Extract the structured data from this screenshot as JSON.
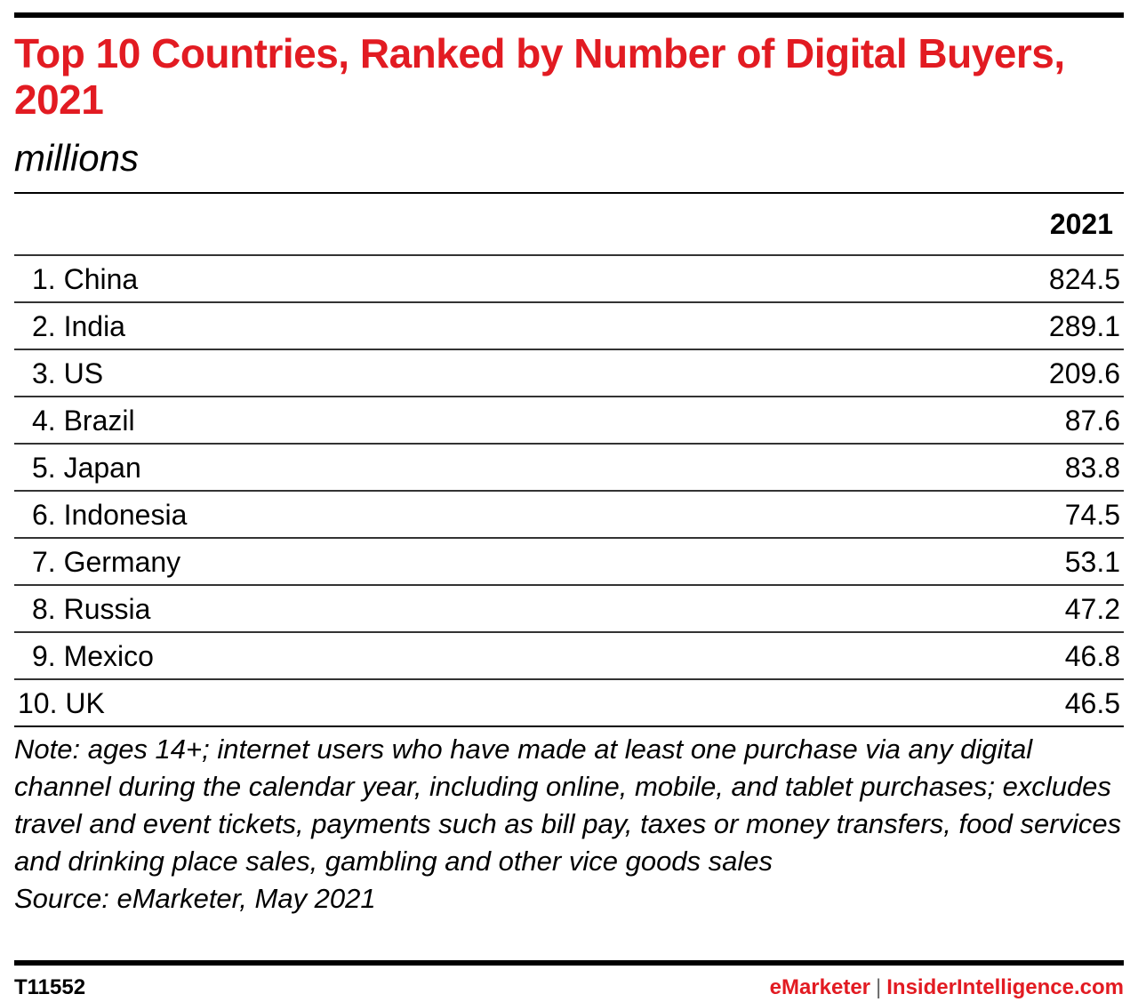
{
  "chart_data": {
    "type": "table",
    "title": "Top 10 Countries, Ranked by Number of Digital Buyers, 2021",
    "subtitle": "millions",
    "columns": [
      "2021"
    ],
    "rows": [
      {
        "rank": "1.",
        "country": "China",
        "value": "824.5"
      },
      {
        "rank": "2.",
        "country": "India",
        "value": "289.1"
      },
      {
        "rank": "3.",
        "country": "US",
        "value": "209.6"
      },
      {
        "rank": "4.",
        "country": "Brazil",
        "value": "87.6"
      },
      {
        "rank": "5.",
        "country": "Japan",
        "value": "83.8"
      },
      {
        "rank": "6.",
        "country": "Indonesia",
        "value": "74.5"
      },
      {
        "rank": "7.",
        "country": "Germany",
        "value": "53.1"
      },
      {
        "rank": "8.",
        "country": "Russia",
        "value": "47.2"
      },
      {
        "rank": "9.",
        "country": "Mexico",
        "value": "46.8"
      },
      {
        "rank": "10.",
        "country": "UK",
        "value": "46.5"
      }
    ],
    "note": "Note: ages 14+; internet users who have made at least one purchase via any digital channel during the calendar year, including online, mobile, and tablet purchases; excludes travel and event tickets, payments such as bill pay, taxes or money transfers, food services and drinking place sales, gambling and other vice goods sales",
    "source": "Source: eMarketer, May 2021"
  },
  "footer": {
    "id": "T11552",
    "brand_left": "eMarketer",
    "separator": "|",
    "brand_right": "InsiderIntelligence.com"
  },
  "colors": {
    "title": "#e21b22",
    "brand": "#e21b22",
    "text": "#000000"
  }
}
